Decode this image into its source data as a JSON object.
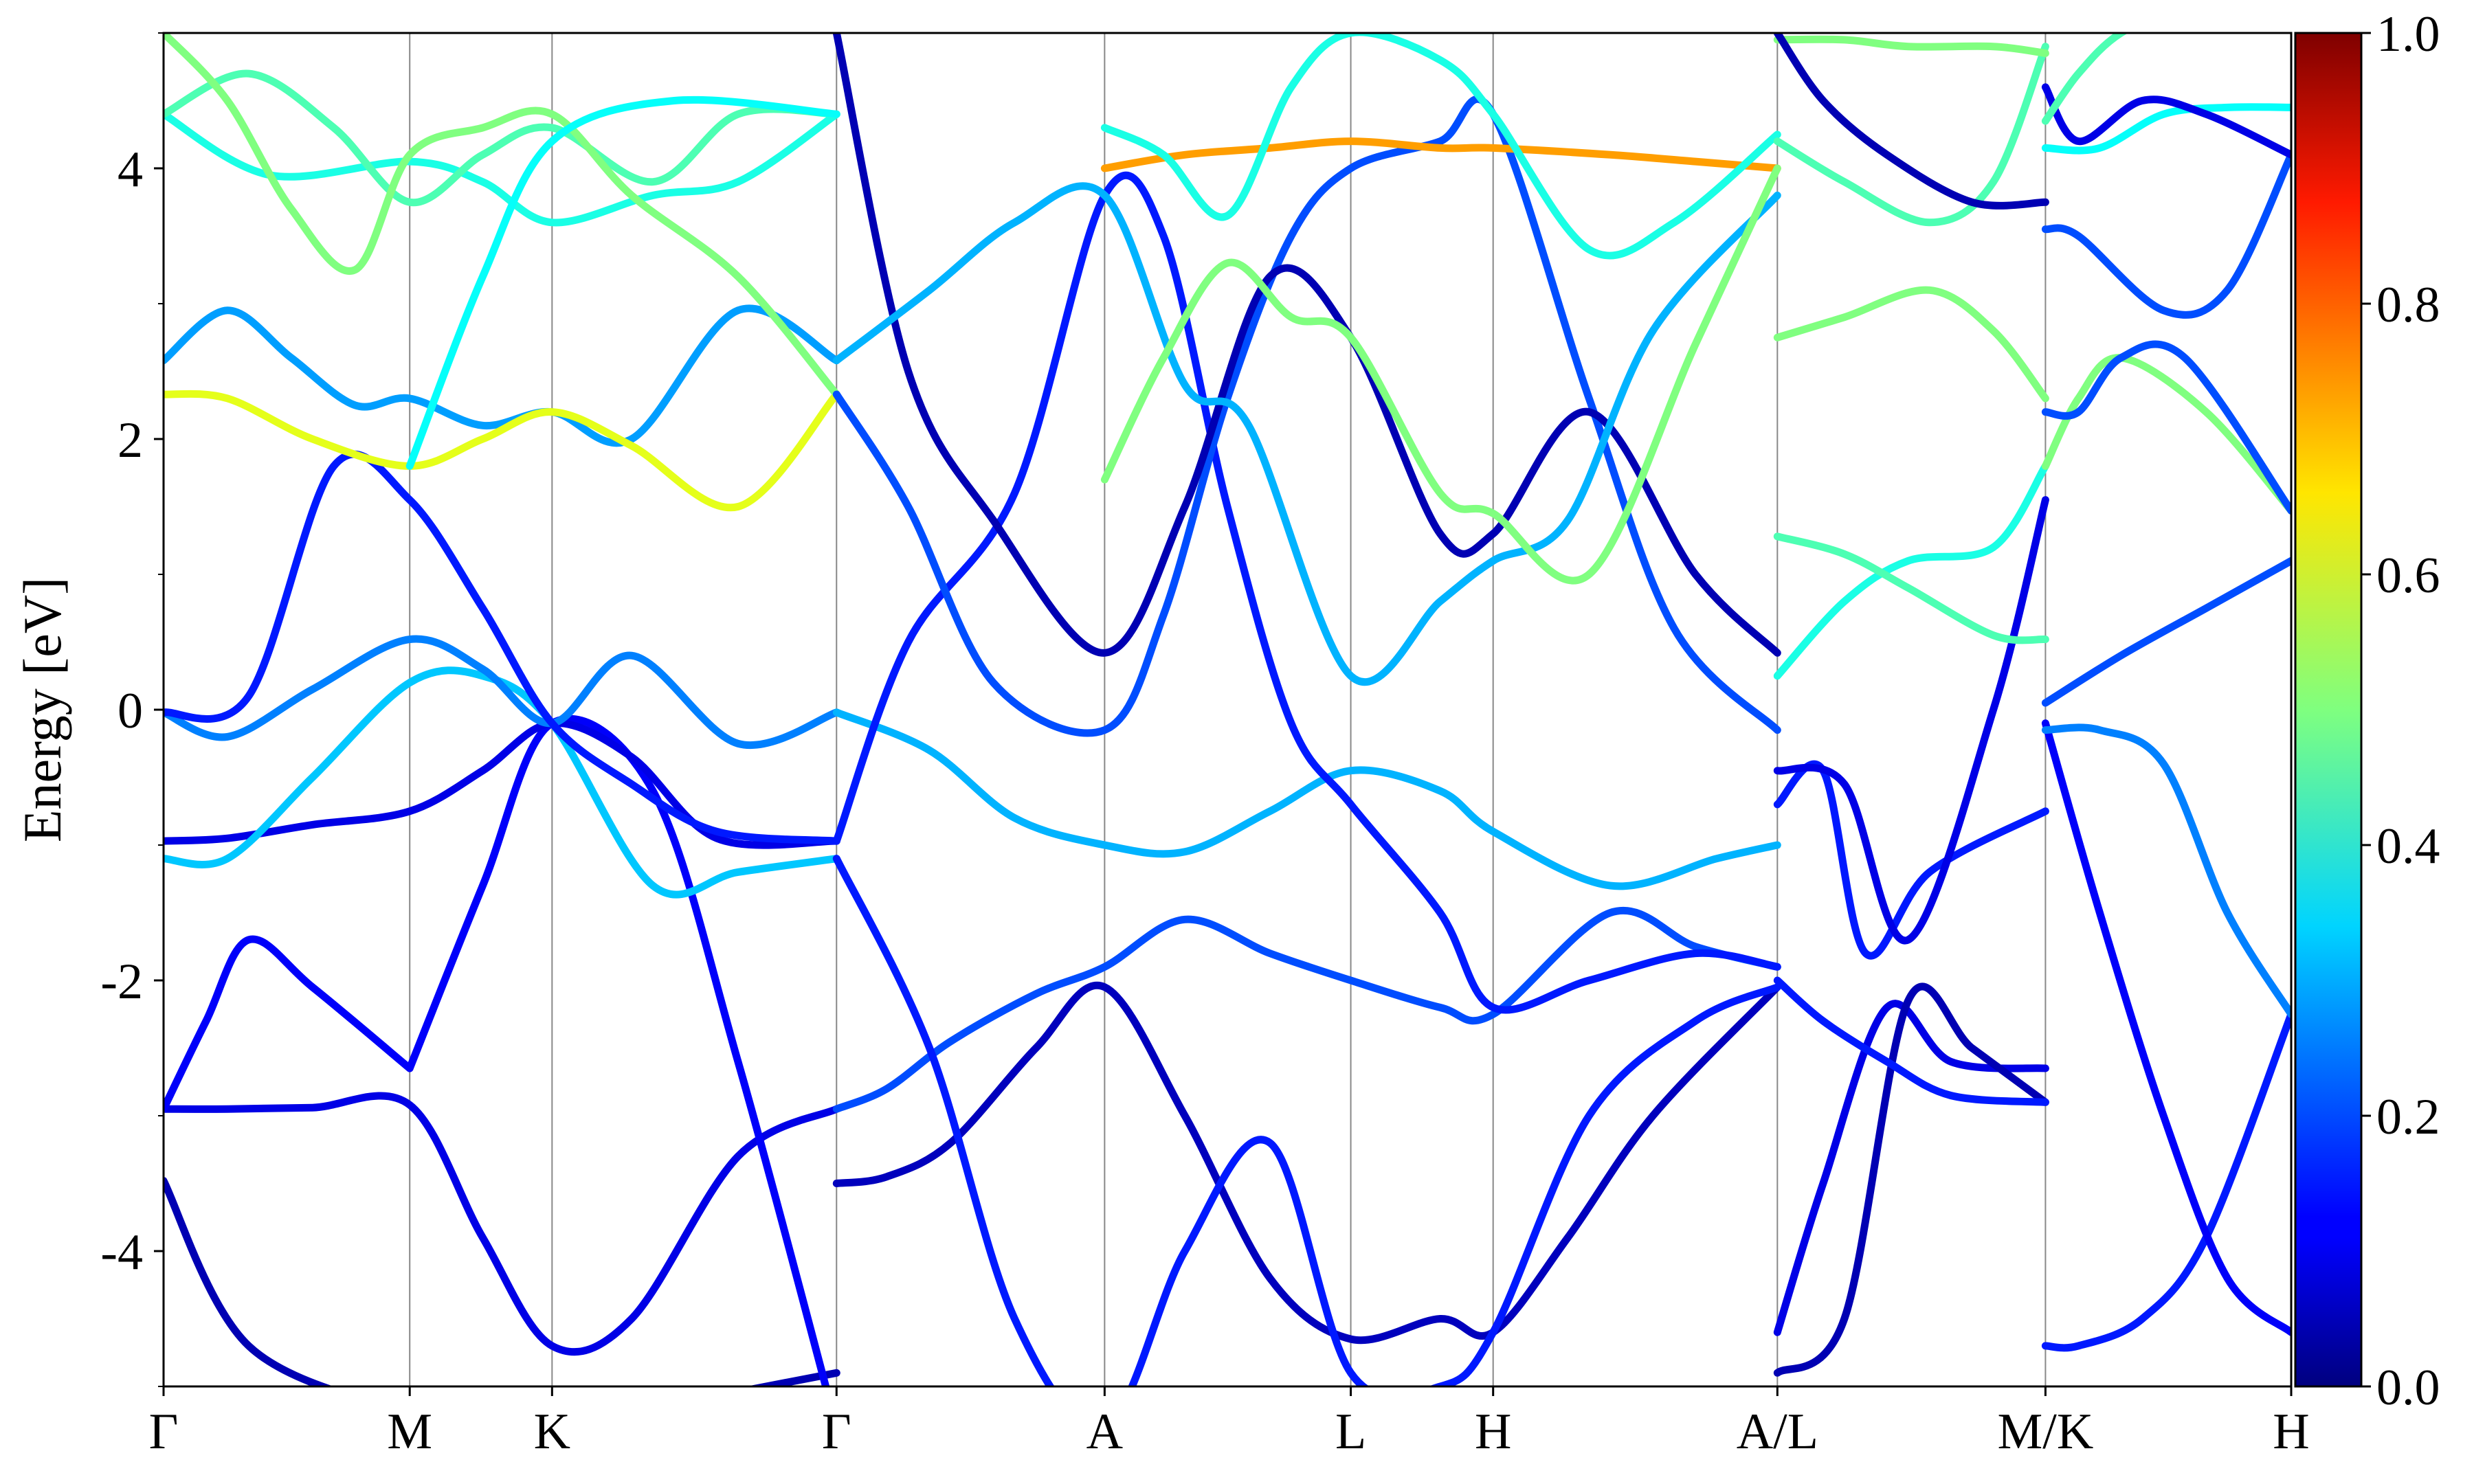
{
  "chart_data": {
    "type": "line",
    "title": "",
    "xlabel": "",
    "ylabel": "Energy [eV]",
    "ylim": [
      -5,
      5
    ],
    "yticks": [
      -4,
      -2,
      0,
      2,
      4
    ],
    "ytick_labels": [
      "-4",
      "-2",
      "0",
      "2",
      "4"
    ],
    "kpath": {
      "labels": [
        "Γ",
        "M",
        "K",
        "Γ",
        "A",
        "L",
        "H",
        "A/L",
        "M/K",
        "H"
      ],
      "positions": [
        0,
        0.1157,
        0.1826,
        0.3163,
        0.4423,
        0.558,
        0.6249,
        0.7585,
        0.8845,
        1.0
      ]
    },
    "colorbar": {
      "colormap": "jet",
      "range": [
        0,
        1
      ],
      "tick_values": [
        0,
        0.2,
        0.4,
        0.6,
        0.8,
        1.0
      ],
      "tick_labels": [
        "0.0",
        "0.2",
        "0.4",
        "0.6",
        "0.8",
        "1.0"
      ]
    },
    "colors": {
      "low": "#00007f",
      "mid": "#7fff7f",
      "high": "#7f0000"
    },
    "bands": [
      {
        "x": [
          0,
          0.04,
          0.1157,
          0.15,
          0.1826,
          0.25,
          0.3163
        ],
        "y": [
          -3.48,
          -4.7,
          -5.2,
          -5.3,
          -5.3,
          -5.1,
          -4.9
        ],
        "weight": 0.05
      },
      {
        "x": [
          0,
          0.03,
          0.07,
          0.1157,
          0.15,
          0.1826,
          0.22,
          0.27,
          0.3163
        ],
        "y": [
          -2.95,
          -2.95,
          -2.94,
          -2.92,
          -3.9,
          -4.7,
          -4.5,
          -3.3,
          -2.95
        ],
        "weight": 0.1
      },
      {
        "x": [
          0,
          0.02,
          0.04,
          0.07,
          0.1157
        ],
        "y": [
          -2.95,
          -2.3,
          -1.7,
          -2.05,
          -2.65
        ],
        "weight": 0.12
      },
      {
        "x": [
          0.1157,
          0.15,
          0.1826,
          0.23,
          0.27,
          0.3163
        ],
        "y": [
          -2.65,
          -1.3,
          -0.1,
          -0.6,
          -2.6,
          -5.3
        ],
        "weight": 0.12
      },
      {
        "x": [
          0,
          0.03,
          0.07,
          0.1157,
          0.15,
          0.1826,
          0.22,
          0.26,
          0.3163
        ],
        "y": [
          -0.97,
          -0.95,
          -0.85,
          -0.75,
          -0.45,
          -0.1,
          -0.35,
          -0.95,
          -0.97
        ],
        "weight": 0.1
      },
      {
        "x": [
          0,
          0.03,
          0.07,
          0.1157,
          0.15,
          0.1826,
          0.23,
          0.27,
          0.3163
        ],
        "y": [
          -1.1,
          -1.1,
          -0.5,
          0.2,
          0.25,
          -0.1,
          -1.3,
          -1.2,
          -1.1
        ],
        "weight": 0.32
      },
      {
        "x": [
          0,
          0.03,
          0.07,
          0.1157,
          0.15,
          0.1826,
          0.22,
          0.27,
          0.3163
        ],
        "y": [
          -0.02,
          -0.2,
          0.15,
          0.52,
          0.3,
          -0.1,
          0.4,
          -0.25,
          -0.02
        ],
        "weight": 0.25
      },
      {
        "x": [
          0,
          0.04,
          0.08,
          0.1157,
          0.15,
          0.1826,
          0.22,
          0.26,
          0.3163
        ],
        "y": [
          -0.02,
          0.1,
          1.8,
          1.55,
          0.75,
          -0.1,
          -0.55,
          -0.9,
          -0.97
        ],
        "weight": 0.15
      },
      {
        "x": [
          0,
          0.03,
          0.06,
          0.09,
          0.1157,
          0.15,
          0.1826,
          0.22,
          0.27,
          0.3163
        ],
        "y": [
          2.58,
          2.95,
          2.6,
          2.25,
          2.3,
          2.1,
          2.2,
          2.0,
          2.95,
          2.58
        ],
        "weight": 0.28
      },
      {
        "x": [
          0,
          0.03,
          0.07,
          0.1157,
          0.15,
          0.1826,
          0.22,
          0.27,
          0.3163
        ],
        "y": [
          2.33,
          2.3,
          2.0,
          1.8,
          2.0,
          2.2,
          1.95,
          1.5,
          2.33
        ],
        "weight": 0.6
      },
      {
        "x": [
          0,
          0.05,
          0.1157,
          0.15,
          0.1826,
          0.23,
          0.27,
          0.3163
        ],
        "y": [
          4.4,
          3.95,
          4.05,
          3.9,
          3.6,
          3.8,
          3.9,
          4.4
        ],
        "weight": 0.4
      },
      {
        "x": [
          0,
          0.04,
          0.08,
          0.1157,
          0.15,
          0.1826,
          0.23,
          0.27,
          0.3163
        ],
        "y": [
          4.4,
          4.7,
          4.3,
          3.75,
          4.1,
          4.3,
          3.9,
          4.4,
          4.4
        ],
        "weight": 0.45
      },
      {
        "x": [
          0,
          0.03,
          0.06,
          0.09,
          0.1157,
          0.15,
          0.1826,
          0.22,
          0.27,
          0.3163
        ],
        "y": [
          5.0,
          4.5,
          3.7,
          3.25,
          4.1,
          4.3,
          4.4,
          3.8,
          3.2,
          2.33
        ],
        "weight": 0.5
      },
      {
        "x": [
          0.1157,
          0.15,
          0.1826,
          0.24,
          0.3163
        ],
        "y": [
          1.8,
          3.2,
          4.2,
          4.5,
          4.4
        ],
        "weight": 0.38
      },
      {
        "x": [
          0.3163,
          0.34,
          0.37,
          0.41,
          0.4423,
          0.48,
          0.52,
          0.558,
          0.6,
          0.6249,
          0.68,
          0.72,
          0.7585
        ],
        "y": [
          -2.95,
          -2.8,
          -2.45,
          -2.1,
          -1.9,
          -1.55,
          -1.8,
          -2.0,
          -2.2,
          -2.25,
          -1.5,
          -1.75,
          -1.9
        ],
        "weight": 0.2
      },
      {
        "x": [
          0.3163,
          0.34,
          0.37,
          0.41,
          0.4423,
          0.48,
          0.52,
          0.558,
          0.6,
          0.6249,
          0.66,
          0.7,
          0.7585
        ],
        "y": [
          -3.5,
          -3.45,
          -3.2,
          -2.5,
          -2.05,
          -3.0,
          -4.2,
          -4.65,
          -4.5,
          -4.6,
          -3.9,
          -3.0,
          -2.05
        ],
        "weight": 0.06
      },
      {
        "x": [
          0.3163,
          0.36,
          0.4,
          0.4423,
          0.48,
          0.52,
          0.558,
          0.6,
          0.6249,
          0.67,
          0.72,
          0.7585
        ],
        "y": [
          -1.1,
          -2.5,
          -4.5,
          -5.3,
          -4.0,
          -3.2,
          -4.9,
          -5.0,
          -4.6,
          -3.0,
          -2.3,
          -2.05
        ],
        "weight": 0.15
      },
      {
        "x": [
          0.3163,
          0.36,
          0.4,
          0.4423,
          0.48,
          0.52,
          0.558,
          0.6,
          0.6249,
          0.68,
          0.73,
          0.7585
        ],
        "y": [
          -0.02,
          -0.3,
          -0.8,
          -1.0,
          -1.05,
          -0.75,
          -0.45,
          -0.6,
          -0.9,
          -1.3,
          -1.1,
          -1.0
        ],
        "weight": 0.3
      },
      {
        "x": [
          0.3163,
          0.35,
          0.4,
          0.4423,
          0.47,
          0.5,
          0.53,
          0.558,
          0.6,
          0.6249,
          0.67,
          0.72,
          0.7585
        ],
        "y": [
          -0.97,
          0.5,
          1.6,
          3.8,
          3.5,
          1.5,
          -0.1,
          -0.7,
          -1.5,
          -2.2,
          -2.0,
          -1.8,
          -1.9
        ],
        "weight": 0.15
      },
      {
        "x": [
          0.3163,
          0.35,
          0.39,
          0.4423,
          0.47,
          0.5,
          0.53,
          0.558,
          0.6,
          0.6249,
          0.67,
          0.71,
          0.7585
        ],
        "y": [
          2.33,
          1.5,
          0.2,
          -0.15,
          0.7,
          2.3,
          3.5,
          4.0,
          4.2,
          4.4,
          2.3,
          0.6,
          -0.15
        ],
        "weight": 0.2
      },
      {
        "x": [
          0.3163,
          0.35,
          0.39,
          0.4423,
          0.48,
          0.52,
          0.558,
          0.6,
          0.6249,
          0.67,
          0.72,
          0.7585
        ],
        "y": [
          5.0,
          2.5,
          1.4,
          0.42,
          1.5,
          3.2,
          2.75,
          1.3,
          1.3,
          2.2,
          1.0,
          0.42
        ],
        "weight": 0.05
      },
      {
        "x": [
          0.3163,
          0.36,
          0.4,
          0.4423,
          0.48,
          0.51,
          0.558,
          0.6,
          0.6249,
          0.66,
          0.7,
          0.7585
        ],
        "y": [
          2.58,
          3.1,
          3.6,
          3.8,
          2.4,
          2.1,
          0.25,
          0.8,
          1.1,
          1.4,
          2.8,
          3.8
        ],
        "weight": 0.3
      },
      {
        "x": [
          0.4423,
          0.48,
          0.52,
          0.558,
          0.6,
          0.6249,
          0.68,
          0.72,
          0.7585
        ],
        "y": [
          4.0,
          4.1,
          4.15,
          4.2,
          4.15,
          4.15,
          4.1,
          4.05,
          4.0
        ],
        "weight": 0.72
      },
      {
        "x": [
          0.4423,
          0.47,
          0.5,
          0.53,
          0.558,
          0.6,
          0.6249,
          0.67,
          0.71,
          0.7585
        ],
        "y": [
          4.3,
          4.1,
          3.65,
          4.6,
          5.0,
          4.8,
          4.4,
          3.4,
          3.6,
          4.25
        ],
        "weight": 0.4
      },
      {
        "x": [
          0.4423,
          0.47,
          0.5,
          0.53,
          0.558,
          0.6,
          0.6249,
          0.67,
          0.72,
          0.7585
        ],
        "y": [
          1.7,
          2.6,
          3.3,
          2.9,
          2.75,
          1.6,
          1.45,
          1.0,
          2.7,
          4.0
        ],
        "weight": 0.5
      },
      {
        "x": [
          0.7585,
          0.78,
          0.81,
          0.84,
          0.8845
        ],
        "y": [
          -4.6,
          -3.5,
          -2.2,
          -2.6,
          -2.65
        ],
        "weight": 0.1
      },
      {
        "x": [
          0.7585,
          0.79,
          0.82,
          0.85,
          0.8845
        ],
        "y": [
          -4.9,
          -4.5,
          -2.15,
          -2.5,
          -2.9
        ],
        "weight": 0.05
      },
      {
        "x": [
          0.7585,
          0.78,
          0.81,
          0.84,
          0.8845
        ],
        "y": [
          -2.0,
          -2.3,
          -2.6,
          -2.85,
          -2.9
        ],
        "weight": 0.15
      },
      {
        "x": [
          0.7585,
          0.78,
          0.8,
          0.83,
          0.8845
        ],
        "y": [
          -0.7,
          -0.45,
          -1.8,
          -1.2,
          -0.75
        ],
        "weight": 0.15
      },
      {
        "x": [
          0.7585,
          0.79,
          0.82,
          0.86,
          0.8845
        ],
        "y": [
          -0.45,
          -0.55,
          -1.7,
          0.0,
          1.55
        ],
        "weight": 0.1
      },
      {
        "x": [
          0.7585,
          0.79,
          0.82,
          0.86,
          0.8845
        ],
        "y": [
          0.25,
          0.8,
          1.1,
          1.2,
          1.8
        ],
        "weight": 0.4
      },
      {
        "x": [
          0.7585,
          0.79,
          0.82,
          0.86,
          0.8845
        ],
        "y": [
          1.28,
          1.15,
          0.9,
          0.55,
          0.52
        ],
        "weight": 0.45
      },
      {
        "x": [
          0.7585,
          0.79,
          0.83,
          0.86,
          0.8845
        ],
        "y": [
          2.75,
          2.9,
          3.1,
          2.8,
          2.3
        ],
        "weight": 0.5
      },
      {
        "x": [
          0.7585,
          0.79,
          0.83,
          0.86,
          0.8845
        ],
        "y": [
          4.2,
          3.9,
          3.6,
          3.9,
          4.9
        ],
        "weight": 0.45
      },
      {
        "x": [
          0.7585,
          0.79,
          0.82,
          0.86,
          0.8845
        ],
        "y": [
          4.95,
          4.95,
          4.9,
          4.9,
          4.85
        ],
        "weight": 0.5
      },
      {
        "x": [
          0.7585,
          0.78,
          0.81,
          0.85,
          0.8845
        ],
        "y": [
          5.0,
          4.5,
          4.1,
          3.75,
          3.75
        ],
        "weight": 0.05
      },
      {
        "x": [
          0.8845,
          0.9,
          0.93,
          0.96,
          1.0
        ],
        "y": [
          -4.7,
          -4.7,
          -4.5,
          -3.9,
          -2.25
        ],
        "weight": 0.15
      },
      {
        "x": [
          0.8845,
          0.91,
          0.94,
          0.97,
          1.0
        ],
        "y": [
          -0.1,
          -1.5,
          -3.0,
          -4.2,
          -4.6
        ],
        "weight": 0.12
      },
      {
        "x": [
          0.8845,
          0.91,
          0.94,
          0.97,
          1.0
        ],
        "y": [
          -0.15,
          -0.15,
          -0.4,
          -1.5,
          -2.25
        ],
        "weight": 0.25
      },
      {
        "x": [
          0.8845,
          0.92,
          0.96,
          1.0
        ],
        "y": [
          0.05,
          0.4,
          0.75,
          1.1
        ],
        "weight": 0.2
      },
      {
        "x": [
          0.8845,
          0.9,
          0.92,
          0.96,
          1.0
        ],
        "y": [
          1.8,
          2.3,
          2.6,
          2.2,
          1.47
        ],
        "weight": 0.5
      },
      {
        "x": [
          0.8845,
          0.9,
          0.92,
          0.95,
          1.0
        ],
        "y": [
          2.2,
          2.2,
          2.6,
          2.6,
          1.47
        ],
        "weight": 0.2
      },
      {
        "x": [
          0.8845,
          0.9,
          0.94,
          0.97,
          1.0
        ],
        "y": [
          3.55,
          3.5,
          2.95,
          3.1,
          4.1
        ],
        "weight": 0.2
      },
      {
        "x": [
          0.8845,
          0.91,
          0.94,
          0.97,
          1.0
        ],
        "y": [
          4.15,
          4.15,
          4.4,
          4.45,
          4.45
        ],
        "weight": 0.38
      },
      {
        "x": [
          0.8845,
          0.9,
          0.93,
          0.96,
          1.0
        ],
        "y": [
          4.6,
          4.2,
          4.5,
          4.4,
          4.1
        ],
        "weight": 0.1
      },
      {
        "x": [
          0.8845,
          0.9,
          0.92,
          0.95
        ],
        "y": [
          4.35,
          4.7,
          5.0,
          5.2
        ],
        "weight": 0.45
      }
    ]
  }
}
